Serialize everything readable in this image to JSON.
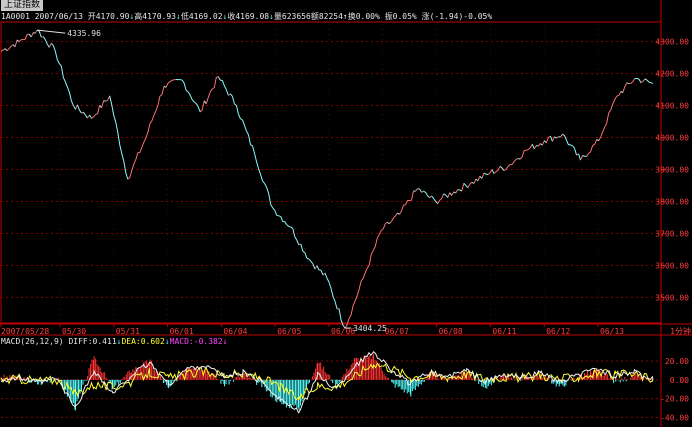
{
  "title": "上证指数",
  "info": {
    "code_date": "1A0001 2007/06/13",
    "open_label": "开",
    "open": "4170.90",
    "high_label": "高",
    "high": "4170.93",
    "low_label": "低",
    "low": "4169.02",
    "close_label": "收",
    "close": "4169.08",
    "volume_label": "量",
    "volume": "623656",
    "amount_label": "额",
    "amount": "82254",
    "turnover_label": "换",
    "turnover": "0.00%",
    "amplitude_label": "振",
    "amplitude": "0.05%",
    "change_label": "涨",
    "change": "(-1.94)-0.05%"
  },
  "macd": {
    "name": "MACD(26,12,9)",
    "diff_label": "DIFF:",
    "diff": "0.411",
    "dea_label": "DEA:",
    "dea": "0.602",
    "macd_label": "MACD:",
    "macd": "-0.382"
  },
  "colors": {
    "up": "#ff3232",
    "down": "#54ffff",
    "grid": "#8a0000",
    "axis": "#c00000",
    "diff": "#f0f0f0",
    "dea": "#ffff30"
  },
  "chart_data": [
    {
      "type": "line",
      "title": "上证指数",
      "interval_label": "1分钟",
      "x_ticks": [
        "2007/05/28",
        "05/30",
        "05/31",
        "06/01",
        "06/04",
        "06/05",
        "06/06",
        "06/07",
        "06/08",
        "06/11",
        "06/12",
        "06/13"
      ],
      "y_ticks": [
        3500.0,
        3600.0,
        3700.0,
        3800.0,
        3900.0,
        4000.0,
        4100.0,
        4200.0,
        4300.0
      ],
      "ylim": [
        3420,
        4355
      ],
      "annotations": [
        {
          "label": "4335.96",
          "value": 4335.96
        },
        {
          "label": "3404.25",
          "value": 3404.25
        }
      ],
      "series": [
        {
          "x": [
            "05/28",
            "05/29",
            "05/29",
            "05/30",
            "05/30",
            "05/30",
            "05/31",
            "05/31",
            "05/31",
            "05/31",
            "06/01",
            "06/01",
            "06/01",
            "06/01",
            "06/04",
            "06/04",
            "06/04",
            "06/04",
            "06/05",
            "06/05",
            "06/05",
            "06/05",
            "06/06",
            "06/06",
            "06/06",
            "06/07",
            "06/07",
            "06/08",
            "06/08",
            "06/11",
            "06/11",
            "06/12",
            "06/12",
            "06/12",
            "06/13",
            "06/13",
            "06/13"
          ],
          "values": [
            4270,
            4300,
            4335.96,
            4270,
            4100,
            4060,
            4130,
            3870,
            4000,
            4160,
            4180,
            4080,
            4190,
            4100,
            3950,
            3780,
            3720,
            3620,
            3560,
            3404.25,
            3560,
            3710,
            3760,
            3840,
            3800,
            3830,
            3860,
            3890,
            3910,
            3960,
            3990,
            4010,
            3930,
            3990,
            4130,
            4185,
            4169.08
          ]
        }
      ]
    },
    {
      "type": "line",
      "title": "MACD(26,12,9)",
      "y_ticks": [
        20.0,
        0.0,
        -20.0,
        -40.0
      ],
      "ylim": [
        -46,
        36
      ],
      "series": [
        {
          "name": "DIFF",
          "values": [
            0,
            2,
            -3,
            1,
            -30,
            10,
            -15,
            5,
            18,
            -5,
            12,
            15,
            3,
            8,
            -2,
            -20,
            -35,
            5,
            -10,
            15,
            30,
            10,
            -5,
            8,
            3,
            10,
            -2,
            5,
            2,
            8,
            -3,
            5,
            12,
            4,
            8,
            0.411
          ]
        },
        {
          "name": "DEA",
          "values": [
            0,
            1,
            -1,
            0,
            -15,
            -5,
            -8,
            -2,
            8,
            2,
            6,
            9,
            5,
            6,
            2,
            -8,
            -20,
            -6,
            -7,
            4,
            18,
            12,
            3,
            5,
            3,
            6,
            2,
            3,
            2,
            5,
            1,
            3,
            7,
            5,
            6,
            0.602
          ]
        },
        {
          "name": "MACD",
          "type": "bar",
          "values": [
            3,
            2,
            -4,
            2,
            -30,
            25,
            -10,
            10,
            20,
            -10,
            15,
            12,
            -5,
            6,
            -6,
            -25,
            -30,
            20,
            -6,
            22,
            25,
            -4,
            -15,
            6,
            1,
            9,
            -8,
            4,
            1,
            6,
            -7,
            4,
            10,
            -2,
            4,
            -0.382
          ]
        }
      ]
    }
  ]
}
